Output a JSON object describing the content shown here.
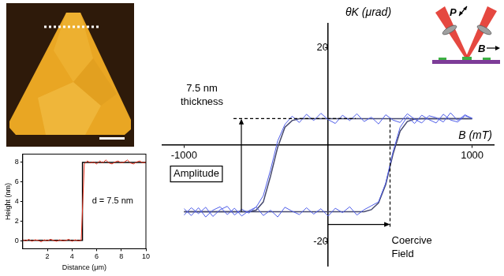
{
  "chart_data": [
    {
      "type": "line",
      "x_label": "Distance (μm)",
      "y_label": "Height (nm)",
      "xlim": [
        0,
        10
      ],
      "xticks": [
        2,
        4,
        6,
        8,
        10
      ],
      "ylim": [
        -0.8,
        8.8
      ],
      "yticks": [
        0,
        2,
        4,
        6,
        8
      ],
      "grid": false,
      "annotation": "d = 7.5 nm",
      "series": [
        {
          "color": "#e8301c",
          "x": [
            0,
            0.25,
            0.5,
            0.75,
            1,
            1.25,
            1.5,
            1.75,
            2,
            2.25,
            2.5,
            2.75,
            3,
            3.25,
            3.5,
            3.75,
            4,
            4.25,
            4.5,
            4.75,
            5,
            5.25,
            5.5,
            5.75,
            6,
            6.25,
            6.5,
            6.75,
            7,
            7.25,
            7.5,
            7.75,
            8,
            8.25,
            8.5,
            8.75,
            9,
            9.25,
            9.5,
            9.75,
            10
          ],
          "values": [
            0.1,
            0.0,
            0.15,
            -0.05,
            0.1,
            0.05,
            -0.1,
            0.1,
            0.0,
            0.15,
            0.05,
            -0.05,
            0.1,
            0.0,
            0.05,
            0.15,
            -0.05,
            0.1,
            0.0,
            0.05,
            7.8,
            8.1,
            7.9,
            8.0,
            7.8,
            8.1,
            7.9,
            8.2,
            7.9,
            7.8,
            8.0,
            8.1,
            7.9,
            8.0,
            8.2,
            7.9,
            7.8,
            8.0,
            8.1,
            7.9,
            8.0
          ]
        },
        {
          "color": "#000000",
          "x": [
            0,
            4.85,
            4.85,
            10
          ],
          "values": [
            0.05,
            0.05,
            7.95,
            7.95
          ]
        }
      ]
    },
    {
      "type": "line",
      "x_label": "B (mT)",
      "y_label": "θK (μrad)",
      "xlim": [
        -1150,
        1150
      ],
      "xticks": [
        -1000,
        1000
      ],
      "ylim": [
        -25,
        25
      ],
      "yticks": [
        -20,
        20
      ],
      "grid": false,
      "plateaus": [
        -13.8,
        5.4
      ],
      "coercive_field": 430,
      "annotations": {
        "thickness": [
          "7.5 nm",
          "thickness"
        ],
        "amplitude": "Amplitude",
        "coercive": [
          "Coercive",
          "Field"
        ]
      },
      "x": [
        -1000,
        -950,
        -900,
        -850,
        -800,
        -750,
        -700,
        -650,
        -600,
        -550,
        -500,
        -450,
        -400,
        -350,
        -300,
        -250,
        -200,
        -150,
        -100,
        -50,
        0,
        50,
        100,
        150,
        200,
        250,
        300,
        350,
        400,
        450,
        500,
        550,
        600,
        650,
        700,
        750,
        800,
        850,
        900,
        950,
        1000
      ],
      "series": [
        {
          "color": "#4d5ce8",
          "values": [
            -13.2,
            -14.6,
            -13.0,
            -14.9,
            -13.5,
            -12.8,
            -14.4,
            -13.1,
            -14.7,
            -13.6,
            -12.9,
            -10.5,
            -5.2,
            0.8,
            4.2,
            5.9,
            4.6,
            6.3,
            5.0,
            6.5,
            5.2,
            4.4,
            6.1,
            5.0,
            6.4,
            4.8,
            5.7,
            4.3,
            6.2,
            5.1,
            4.6,
            6.4,
            5.3,
            4.5,
            6.0,
            5.6,
            4.7,
            6.6,
            5.0,
            6.2,
            5.4
          ]
        },
        {
          "color": "#4d5ce8",
          "values": [
            -14.5,
            -13.0,
            -14.2,
            -12.9,
            -14.8,
            -13.4,
            -12.7,
            -14.5,
            -13.3,
            -14.1,
            -12.8,
            -14.6,
            -13.5,
            -14.9,
            -12.9,
            -13.7,
            -14.4,
            -13.0,
            -14.3,
            -13.2,
            -14.7,
            -13.1,
            -14.0,
            -12.8,
            -14.5,
            -13.4,
            -12.6,
            -11.8,
            -7.9,
            -1.5,
            3.6,
            5.8,
            4.4,
            6.1,
            5.2,
            4.5,
            6.3,
            5.1,
            4.7,
            6.0,
            5.5
          ]
        },
        {
          "color": "#46496e",
          "values": [
            -13.8,
            -13.8,
            -13.8,
            -13.8,
            -13.8,
            -13.8,
            -13.8,
            -13.8,
            -13.8,
            -13.8,
            -13.5,
            -11.8,
            -6.5,
            -0.5,
            3.6,
            5.0,
            5.4,
            5.4,
            5.4,
            5.4,
            5.4,
            5.4,
            5.4,
            5.4,
            5.4,
            5.4,
            5.4,
            5.4,
            5.4,
            5.4,
            5.4,
            5.4,
            5.4,
            5.4,
            5.4,
            5.4,
            5.4,
            5.4,
            5.4,
            5.4,
            5.4
          ]
        },
        {
          "color": "#46496e",
          "values": [
            -13.8,
            -13.8,
            -13.8,
            -13.8,
            -13.8,
            -13.8,
            -13.8,
            -13.8,
            -13.8,
            -13.8,
            -13.8,
            -13.8,
            -13.8,
            -13.8,
            -13.8,
            -13.8,
            -13.8,
            -13.8,
            -13.8,
            -13.8,
            -13.8,
            -13.8,
            -13.8,
            -13.8,
            -13.8,
            -13.8,
            -13.4,
            -12.0,
            -8.2,
            -2.0,
            2.8,
            4.8,
            5.3,
            5.4,
            5.4,
            5.4,
            5.4,
            5.4,
            5.4,
            5.4,
            5.4
          ]
        }
      ]
    }
  ],
  "schematic": {
    "labels": [
      "P",
      "B"
    ]
  }
}
